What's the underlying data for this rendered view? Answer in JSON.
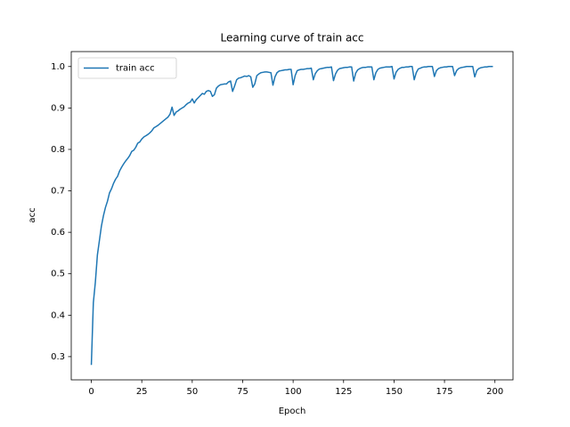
{
  "chart_data": {
    "type": "line",
    "title": "Learning curve of train acc",
    "xlabel": "Epoch",
    "ylabel": "acc",
    "x": [
      0,
      1,
      2,
      3,
      4,
      5,
      6,
      7,
      8,
      9,
      10,
      11,
      12,
      13,
      14,
      15,
      16,
      17,
      18,
      19,
      20,
      21,
      22,
      23,
      24,
      25,
      26,
      27,
      28,
      29,
      30,
      31,
      32,
      33,
      34,
      35,
      36,
      37,
      38,
      39,
      40,
      41,
      42,
      43,
      44,
      45,
      46,
      47,
      48,
      49,
      50,
      51,
      52,
      53,
      54,
      55,
      56,
      57,
      58,
      59,
      60,
      61,
      62,
      63,
      64,
      65,
      66,
      67,
      68,
      69,
      70,
      71,
      72,
      73,
      74,
      75,
      76,
      77,
      78,
      79,
      80,
      81,
      82,
      83,
      84,
      85,
      86,
      87,
      88,
      89,
      90,
      91,
      92,
      93,
      94,
      95,
      96,
      97,
      98,
      99,
      100,
      101,
      102,
      103,
      104,
      105,
      106,
      107,
      108,
      109,
      110,
      111,
      112,
      113,
      114,
      115,
      116,
      117,
      118,
      119,
      120,
      121,
      122,
      123,
      124,
      125,
      126,
      127,
      128,
      129,
      130,
      131,
      132,
      133,
      134,
      135,
      136,
      137,
      138,
      139,
      140,
      141,
      142,
      143,
      144,
      145,
      146,
      147,
      148,
      149,
      150,
      151,
      152,
      153,
      154,
      155,
      156,
      157,
      158,
      159,
      160,
      161,
      162,
      163,
      164,
      165,
      166,
      167,
      168,
      169,
      170,
      171,
      172,
      173,
      174,
      175,
      176,
      177,
      178,
      179,
      180,
      181,
      182,
      183,
      184,
      185,
      186,
      187,
      188,
      189,
      190,
      191,
      192,
      193,
      194,
      195,
      196,
      197,
      198,
      199
    ],
    "series": [
      {
        "name": "train acc",
        "color": "#1f77b4",
        "values": [
          0.28,
          0.43,
          0.48,
          0.545,
          0.58,
          0.615,
          0.64,
          0.66,
          0.675,
          0.695,
          0.705,
          0.718,
          0.728,
          0.735,
          0.748,
          0.757,
          0.765,
          0.772,
          0.778,
          0.785,
          0.795,
          0.798,
          0.805,
          0.815,
          0.818,
          0.825,
          0.83,
          0.833,
          0.836,
          0.84,
          0.845,
          0.852,
          0.855,
          0.858,
          0.862,
          0.866,
          0.87,
          0.874,
          0.878,
          0.885,
          0.902,
          0.882,
          0.89,
          0.893,
          0.897,
          0.9,
          0.903,
          0.908,
          0.912,
          0.914,
          0.922,
          0.912,
          0.92,
          0.925,
          0.93,
          0.935,
          0.933,
          0.94,
          0.942,
          0.94,
          0.928,
          0.932,
          0.948,
          0.953,
          0.956,
          0.957,
          0.958,
          0.958,
          0.963,
          0.965,
          0.94,
          0.953,
          0.968,
          0.972,
          0.973,
          0.975,
          0.977,
          0.976,
          0.978,
          0.975,
          0.95,
          0.958,
          0.978,
          0.982,
          0.985,
          0.986,
          0.987,
          0.987,
          0.986,
          0.985,
          0.955,
          0.975,
          0.985,
          0.989,
          0.99,
          0.991,
          0.992,
          0.992,
          0.993,
          0.993,
          0.956,
          0.978,
          0.99,
          0.992,
          0.993,
          0.993,
          0.994,
          0.995,
          0.995,
          0.996,
          0.968,
          0.983,
          0.99,
          0.994,
          0.995,
          0.996,
          0.997,
          0.998,
          0.998,
          0.999,
          0.966,
          0.982,
          0.991,
          0.995,
          0.996,
          0.997,
          0.998,
          0.998,
          0.999,
          0.999,
          0.965,
          0.984,
          0.992,
          0.995,
          0.997,
          0.998,
          0.998,
          0.999,
          0.999,
          0.999,
          0.968,
          0.985,
          0.993,
          0.996,
          0.997,
          0.998,
          0.999,
          0.999,
          0.999,
          1.0,
          0.97,
          0.986,
          0.993,
          0.996,
          0.998,
          0.998,
          0.999,
          0.999,
          1.0,
          1.0,
          0.968,
          0.985,
          0.994,
          0.996,
          0.998,
          0.999,
          0.999,
          1.0,
          1.0,
          1.0,
          0.976,
          0.99,
          0.995,
          0.997,
          0.998,
          0.999,
          0.999,
          1.0,
          1.0,
          1.0,
          0.978,
          0.99,
          0.995,
          0.997,
          0.998,
          0.999,
          1.0,
          1.0,
          1.0,
          1.0,
          0.975,
          0.99,
          0.995,
          0.997,
          0.998,
          0.999,
          0.999,
          1.0,
          1.0,
          1.0
        ]
      }
    ],
    "xlim": [
      -9.95,
      208.95
    ],
    "xticks": [
      0,
      25,
      50,
      75,
      100,
      125,
      150,
      175,
      200
    ],
    "ylim": [
      0.244,
      1.036
    ],
    "yticks": [
      0.3,
      0.4,
      0.5,
      0.6,
      0.7,
      0.8,
      0.9,
      {
        "value": 1,
        "label": "1.0"
      }
    ],
    "legend": "upper left",
    "grid": false
  }
}
